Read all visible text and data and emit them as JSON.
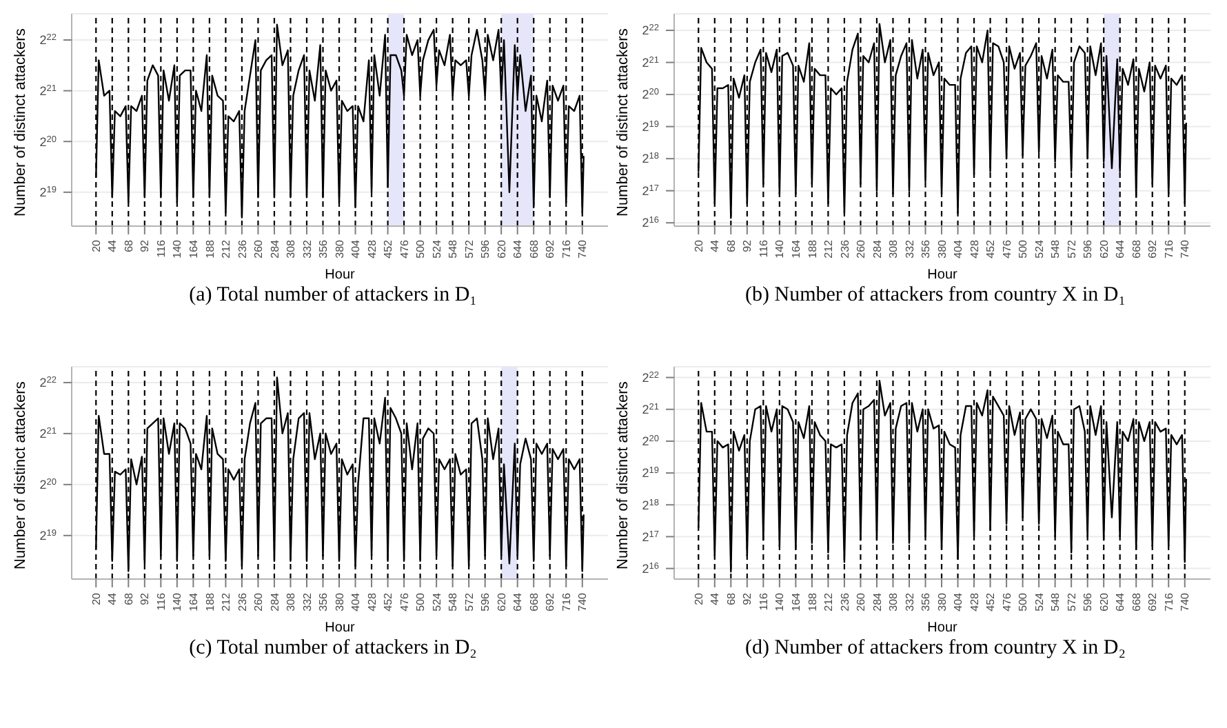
{
  "chart_data": [
    {
      "type": "line",
      "title": "(a) Total number of attackers in D₁",
      "xlabel": "Hour",
      "ylabel": "Number of distinct attackers",
      "log": true,
      "grid": "y",
      "xlim": [
        -16,
        778
      ],
      "xticks": [
        20,
        44,
        68,
        92,
        116,
        140,
        164,
        188,
        212,
        236,
        260,
        284,
        308,
        332,
        356,
        380,
        404,
        428,
        452,
        476,
        500,
        524,
        548,
        572,
        596,
        620,
        644,
        668,
        692,
        716,
        740
      ],
      "ylim": [
        330000,
        6000000
      ],
      "yticks": [
        {
          "value": 524288,
          "label": "2$^{19}$"
        },
        {
          "value": 1048576,
          "label": "2$^{20}$"
        },
        {
          "value": 2097152,
          "label": "2$^{21}$"
        },
        {
          "value": 4194304,
          "label": "2$^{22}$"
        }
      ],
      "x": [
        20,
        24,
        32,
        40,
        44,
        48,
        56,
        64,
        68,
        72,
        80,
        88,
        92,
        96,
        104,
        112,
        116,
        120,
        128,
        136,
        140,
        144,
        152,
        160,
        164,
        168,
        176,
        184,
        188,
        192,
        200,
        208,
        212,
        216,
        224,
        232,
        236,
        240,
        248,
        256,
        260,
        264,
        272,
        280,
        284,
        288,
        296,
        304,
        308,
        312,
        320,
        328,
        332,
        336,
        344,
        352,
        356,
        360,
        368,
        376,
        380,
        384,
        392,
        400,
        404,
        408,
        416,
        424,
        428,
        432,
        440,
        448,
        452,
        456,
        464,
        472,
        476,
        480,
        488,
        496,
        500,
        504,
        512,
        520,
        524,
        528,
        536,
        544,
        548,
        552,
        560,
        568,
        572,
        576,
        584,
        592,
        596,
        600,
        608,
        616,
        620,
        624,
        632,
        640,
        644,
        648,
        656,
        664,
        668,
        672,
        680,
        688,
        692,
        696,
        704,
        712,
        716,
        720,
        728,
        736,
        740,
        742
      ],
      "series": [
        {
          "color": "#000000",
          "values": [
            645000,
            3180000,
            1960000,
            2100000,
            489000,
            1590000,
            1480000,
            1700000,
            456000,
            1700000,
            1590000,
            1960000,
            489000,
            2410000,
            2970000,
            2580000,
            489000,
            2770000,
            1830000,
            2970000,
            456000,
            2580000,
            2770000,
            2770000,
            489000,
            2100000,
            1590000,
            3410000,
            489000,
            2580000,
            1960000,
            1830000,
            397000,
            1480000,
            1380000,
            1590000,
            371000,
            1590000,
            2580000,
            4190000,
            489000,
            2770000,
            3180000,
            3410000,
            489000,
            5170000,
            2970000,
            3650000,
            489000,
            1960000,
            2770000,
            3410000,
            489000,
            2770000,
            1830000,
            3910000,
            489000,
            2770000,
            2100000,
            2410000,
            456000,
            1830000,
            1590000,
            1700000,
            426000,
            1700000,
            1380000,
            3180000,
            524000,
            3410000,
            1960000,
            4500000,
            562000,
            3410000,
            3410000,
            2770000,
            1960000,
            4500000,
            3410000,
            4190000,
            1960000,
            3180000,
            4190000,
            4820000,
            2250000,
            3650000,
            2970000,
            4500000,
            1960000,
            3180000,
            2970000,
            3180000,
            1960000,
            3410000,
            4820000,
            3180000,
            1960000,
            4500000,
            3180000,
            4820000,
            1960000,
            4190000,
            524000,
            3910000,
            1960000,
            3410000,
            1590000,
            2580000,
            426000,
            1960000,
            1380000,
            2410000,
            489000,
            2250000,
            1830000,
            2250000,
            456000,
            1700000,
            1590000,
            1960000,
            397000,
            852000
          ]
        }
      ],
      "bands": [
        {
          "axis": "x",
          "from": 452,
          "to": 476,
          "color": "#e6e6fa"
        },
        {
          "axis": "x",
          "from": 620,
          "to": 668,
          "color": "#e6e6fa"
        }
      ],
      "ref_lines": [
        {
          "axis": "x",
          "value": 20,
          "line_style": "dashed",
          "color": "#000000"
        },
        {
          "axis": "x",
          "value": 44,
          "line_style": "dashed",
          "color": "#000000"
        },
        {
          "axis": "x",
          "value": 68,
          "line_style": "dashed",
          "color": "#000000"
        },
        {
          "axis": "x",
          "value": 92,
          "line_style": "dashed",
          "color": "#000000"
        },
        {
          "axis": "x",
          "value": 116,
          "line_style": "dashed",
          "color": "#000000"
        },
        {
          "axis": "x",
          "value": 140,
          "line_style": "dashed",
          "color": "#000000"
        },
        {
          "axis": "x",
          "value": 164,
          "line_style": "dashed",
          "color": "#000000"
        },
        {
          "axis": "x",
          "value": 188,
          "line_style": "dashed",
          "color": "#000000"
        },
        {
          "axis": "x",
          "value": 212,
          "line_style": "dashed",
          "color": "#000000"
        },
        {
          "axis": "x",
          "value": 236,
          "line_style": "dashed",
          "color": "#000000"
        },
        {
          "axis": "x",
          "value": 260,
          "line_style": "dashed",
          "color": "#000000"
        },
        {
          "axis": "x",
          "value": 284,
          "line_style": "dashed",
          "color": "#000000"
        },
        {
          "axis": "x",
          "value": 308,
          "line_style": "dashed",
          "color": "#000000"
        },
        {
          "axis": "x",
          "value": 332,
          "line_style": "dashed",
          "color": "#000000"
        },
        {
          "axis": "x",
          "value": 356,
          "line_style": "dashed",
          "color": "#000000"
        },
        {
          "axis": "x",
          "value": 380,
          "line_style": "dashed",
          "color": "#000000"
        },
        {
          "axis": "x",
          "value": 404,
          "line_style": "dashed",
          "color": "#000000"
        },
        {
          "axis": "x",
          "value": 428,
          "line_style": "dashed",
          "color": "#000000"
        },
        {
          "axis": "x",
          "value": 452,
          "line_style": "dashed",
          "color": "#000000"
        },
        {
          "axis": "x",
          "value": 476,
          "line_style": "dashed",
          "color": "#000000"
        },
        {
          "axis": "x",
          "value": 500,
          "line_style": "dashed",
          "color": "#000000"
        },
        {
          "axis": "x",
          "value": 524,
          "line_style": "dashed",
          "color": "#000000"
        },
        {
          "axis": "x",
          "value": 548,
          "line_style": "dashed",
          "color": "#000000"
        },
        {
          "axis": "x",
          "value": 572,
          "line_style": "dashed",
          "color": "#000000"
        },
        {
          "axis": "x",
          "value": 596,
          "line_style": "dashed",
          "color": "#000000"
        },
        {
          "axis": "x",
          "value": 620,
          "line_style": "dashed",
          "color": "#000000"
        },
        {
          "axis": "x",
          "value": 644,
          "line_style": "dashed",
          "color": "#000000"
        },
        {
          "axis": "x",
          "value": 668,
          "line_style": "dashed",
          "color": "#000000"
        },
        {
          "axis": "x",
          "value": 692,
          "line_style": "dashed",
          "color": "#000000"
        },
        {
          "axis": "x",
          "value": 716,
          "line_style": "dashed",
          "color": "#000000"
        },
        {
          "axis": "x",
          "value": 740,
          "line_style": "dashed",
          "color": "#000000"
        }
      ]
    },
    {
      "type": "line",
      "title": "(b) Number of attackers from country X in D₁",
      "xlabel": "Hour",
      "ylabel": "Number of distinct attackers",
      "log": true,
      "grid": "y",
      "xlim": [
        -16,
        778
      ],
      "xticks": [
        20,
        44,
        68,
        92,
        116,
        140,
        164,
        188,
        212,
        236,
        260,
        284,
        308,
        332,
        356,
        380,
        404,
        428,
        452,
        476,
        500,
        524,
        548,
        572,
        596,
        620,
        644,
        668,
        692,
        716,
        740
      ],
      "ylim": [
        61000,
        6000000
      ],
      "yticks": [
        {
          "value": 65536,
          "label": "2$^{16}$"
        },
        {
          "value": 131072,
          "label": "2$^{17}$"
        },
        {
          "value": 262144,
          "label": "2$^{18}$"
        },
        {
          "value": 524288,
          "label": "2$^{19}$"
        },
        {
          "value": 1048576,
          "label": "2$^{20}$"
        },
        {
          "value": 2097152,
          "label": "2$^{21}$"
        },
        {
          "value": 4194304,
          "label": "2$^{22}$"
        }
      ],
      "x": [
        20,
        24,
        32,
        40,
        44,
        48,
        56,
        64,
        68,
        72,
        80,
        88,
        92,
        96,
        104,
        112,
        116,
        120,
        128,
        136,
        140,
        144,
        152,
        160,
        164,
        168,
        176,
        184,
        188,
        192,
        200,
        208,
        212,
        216,
        224,
        232,
        236,
        240,
        248,
        256,
        260,
        264,
        272,
        280,
        284,
        288,
        296,
        304,
        308,
        312,
        320,
        328,
        332,
        336,
        344,
        352,
        356,
        360,
        368,
        376,
        380,
        384,
        392,
        400,
        404,
        408,
        416,
        424,
        428,
        432,
        440,
        448,
        452,
        456,
        464,
        472,
        476,
        480,
        488,
        496,
        500,
        504,
        512,
        520,
        524,
        528,
        536,
        544,
        548,
        552,
        560,
        568,
        572,
        576,
        584,
        592,
        596,
        600,
        608,
        616,
        620,
        624,
        632,
        640,
        644,
        648,
        656,
        664,
        668,
        672,
        680,
        688,
        692,
        696,
        704,
        712,
        716,
        720,
        728,
        736,
        740,
        742
      ],
      "series": [
        {
          "color": "#000000",
          "values": [
            199000,
            2870000,
            2100000,
            1830000,
            99400,
            1200000,
            1200000,
            1290000,
            72700,
            1480000,
            978000,
            1590000,
            99400,
            1380000,
            2100000,
            2770000,
            151000,
            2580000,
            1700000,
            2770000,
            122000,
            2410000,
            2580000,
            1960000,
            122000,
            1960000,
            1380000,
            3180000,
            151000,
            1830000,
            1590000,
            1590000,
            99400,
            1200000,
            1050000,
            1200000,
            80700,
            1380000,
            2770000,
            3910000,
            151000,
            2410000,
            2100000,
            3180000,
            131000,
            4820000,
            2100000,
            3410000,
            122000,
            1590000,
            2410000,
            3180000,
            131000,
            3410000,
            1480000,
            2770000,
            161000,
            2580000,
            1590000,
            2100000,
            122000,
            1480000,
            1290000,
            1290000,
            80700,
            1480000,
            2580000,
            2970000,
            185000,
            2970000,
            2100000,
            4190000,
            199000,
            3180000,
            2970000,
            2100000,
            262000,
            2970000,
            1830000,
            2580000,
            281000,
            1960000,
            2410000,
            3180000,
            301000,
            2410000,
            1480000,
            2770000,
            245000,
            1590000,
            1380000,
            1380000,
            199000,
            2100000,
            2970000,
            2580000,
            262000,
            2970000,
            1590000,
            3180000,
            245000,
            2410000,
            213000,
            2250000,
            199000,
            1830000,
            1290000,
            2250000,
            114000,
            1830000,
            1120000,
            2100000,
            151000,
            1960000,
            1480000,
            1960000,
            122000,
            1480000,
            1290000,
            1590000,
            99400,
            562000
          ]
        }
      ],
      "bands": [
        {
          "axis": "x",
          "from": 620,
          "to": 644,
          "color": "#e6e6fa"
        }
      ],
      "ref_lines": [
        {
          "axis": "x",
          "value": 20,
          "line_style": "dashed",
          "color": "#000000"
        },
        {
          "axis": "x",
          "value": 44,
          "line_style": "dashed",
          "color": "#000000"
        },
        {
          "axis": "x",
          "value": 68,
          "line_style": "dashed",
          "color": "#000000"
        },
        {
          "axis": "x",
          "value": 92,
          "line_style": "dashed",
          "color": "#000000"
        },
        {
          "axis": "x",
          "value": 116,
          "line_style": "dashed",
          "color": "#000000"
        },
        {
          "axis": "x",
          "value": 140,
          "line_style": "dashed",
          "color": "#000000"
        },
        {
          "axis": "x",
          "value": 164,
          "line_style": "dashed",
          "color": "#000000"
        },
        {
          "axis": "x",
          "value": 188,
          "line_style": "dashed",
          "color": "#000000"
        },
        {
          "axis": "x",
          "value": 212,
          "line_style": "dashed",
          "color": "#000000"
        },
        {
          "axis": "x",
          "value": 236,
          "line_style": "dashed",
          "color": "#000000"
        },
        {
          "axis": "x",
          "value": 260,
          "line_style": "dashed",
          "color": "#000000"
        },
        {
          "axis": "x",
          "value": 284,
          "line_style": "dashed",
          "color": "#000000"
        },
        {
          "axis": "x",
          "value": 308,
          "line_style": "dashed",
          "color": "#000000"
        },
        {
          "axis": "x",
          "value": 332,
          "line_style": "dashed",
          "color": "#000000"
        },
        {
          "axis": "x",
          "value": 356,
          "line_style": "dashed",
          "color": "#000000"
        },
        {
          "axis": "x",
          "value": 380,
          "line_style": "dashed",
          "color": "#000000"
        },
        {
          "axis": "x",
          "value": 404,
          "line_style": "dashed",
          "color": "#000000"
        },
        {
          "axis": "x",
          "value": 428,
          "line_style": "dashed",
          "color": "#000000"
        },
        {
          "axis": "x",
          "value": 452,
          "line_style": "dashed",
          "color": "#000000"
        },
        {
          "axis": "x",
          "value": 476,
          "line_style": "dashed",
          "color": "#000000"
        },
        {
          "axis": "x",
          "value": 500,
          "line_style": "dashed",
          "color": "#000000"
        },
        {
          "axis": "x",
          "value": 524,
          "line_style": "dashed",
          "color": "#000000"
        },
        {
          "axis": "x",
          "value": 548,
          "line_style": "dashed",
          "color": "#000000"
        },
        {
          "axis": "x",
          "value": 572,
          "line_style": "dashed",
          "color": "#000000"
        },
        {
          "axis": "x",
          "value": 596,
          "line_style": "dashed",
          "color": "#000000"
        },
        {
          "axis": "x",
          "value": 620,
          "line_style": "dashed",
          "color": "#000000"
        },
        {
          "axis": "x",
          "value": 644,
          "line_style": "dashed",
          "color": "#000000"
        },
        {
          "axis": "x",
          "value": 668,
          "line_style": "dashed",
          "color": "#000000"
        },
        {
          "axis": "x",
          "value": 692,
          "line_style": "dashed",
          "color": "#000000"
        },
        {
          "axis": "x",
          "value": 716,
          "line_style": "dashed",
          "color": "#000000"
        },
        {
          "axis": "x",
          "value": 740,
          "line_style": "dashed",
          "color": "#000000"
        }
      ]
    },
    {
      "type": "line",
      "title": "(c) Total number of attackers in D₂",
      "xlabel": "Hour",
      "ylabel": "Number of distinct attackers",
      "log": true,
      "grid": "y",
      "xlim": [
        -16,
        778
      ],
      "xticks": [
        20,
        44,
        68,
        92,
        116,
        140,
        164,
        188,
        212,
        236,
        260,
        284,
        308,
        332,
        356,
        380,
        404,
        428,
        452,
        476,
        500,
        524,
        548,
        572,
        596,
        620,
        644,
        668,
        692,
        716,
        740
      ],
      "ylim": [
        290000,
        5200000
      ],
      "yticks": [
        {
          "value": 524288,
          "label": "2$^{19}$"
        },
        {
          "value": 1048576,
          "label": "2$^{20}$"
        },
        {
          "value": 2097152,
          "label": "2$^{21}$"
        },
        {
          "value": 4194304,
          "label": "2$^{22}$"
        }
      ],
      "x": [
        20,
        24,
        32,
        40,
        44,
        48,
        56,
        64,
        68,
        72,
        80,
        88,
        92,
        96,
        104,
        112,
        116,
        120,
        128,
        136,
        140,
        144,
        152,
        160,
        164,
        168,
        176,
        184,
        188,
        192,
        200,
        208,
        212,
        216,
        224,
        232,
        236,
        240,
        248,
        256,
        260,
        264,
        272,
        280,
        284,
        288,
        296,
        304,
        308,
        312,
        320,
        328,
        332,
        336,
        344,
        352,
        356,
        360,
        368,
        376,
        380,
        384,
        392,
        400,
        404,
        408,
        416,
        424,
        428,
        432,
        440,
        448,
        452,
        456,
        464,
        472,
        476,
        480,
        488,
        496,
        500,
        504,
        512,
        520,
        524,
        528,
        536,
        544,
        548,
        552,
        560,
        568,
        572,
        576,
        584,
        592,
        596,
        600,
        608,
        616,
        620,
        624,
        632,
        640,
        644,
        648,
        656,
        664,
        668,
        672,
        680,
        688,
        692,
        696,
        704,
        712,
        716,
        720,
        728,
        736,
        740,
        742
      ],
      "series": [
        {
          "color": "#000000",
          "values": [
            441000,
            2670000,
            1590000,
            1590000,
            371000,
            1250000,
            1200000,
            1290000,
            323000,
            1480000,
            1050000,
            1530000,
            358000,
            2250000,
            2410000,
            2580000,
            397000,
            2580000,
            1590000,
            2410000,
            371000,
            2410000,
            2250000,
            1830000,
            397000,
            1590000,
            1290000,
            2670000,
            397000,
            2250000,
            1590000,
            1480000,
            371000,
            1290000,
            1120000,
            1290000,
            346000,
            1480000,
            2410000,
            3180000,
            397000,
            2410000,
            2580000,
            2580000,
            371000,
            4500000,
            2100000,
            2770000,
            371000,
            1480000,
            2580000,
            2770000,
            371000,
            2770000,
            1480000,
            2100000,
            397000,
            2100000,
            1590000,
            1830000,
            371000,
            1480000,
            1200000,
            1380000,
            346000,
            1050000,
            2580000,
            2580000,
            397000,
            2580000,
            1830000,
            3410000,
            371000,
            2970000,
            2580000,
            2100000,
            371000,
            2410000,
            1290000,
            2410000,
            371000,
            1960000,
            2250000,
            2100000,
            397000,
            1480000,
            1290000,
            1480000,
            346000,
            1590000,
            1200000,
            1290000,
            346000,
            2410000,
            2580000,
            1480000,
            397000,
            2580000,
            1480000,
            2250000,
            397000,
            1380000,
            358000,
            1830000,
            397000,
            1380000,
            1960000,
            1480000,
            371000,
            1830000,
            1590000,
            1830000,
            397000,
            1700000,
            1480000,
            1700000,
            346000,
            1480000,
            1290000,
            1480000,
            323000,
            692000
          ]
        }
      ],
      "bands": [
        {
          "axis": "x",
          "from": 620,
          "to": 644,
          "color": "#e6e6fa"
        }
      ],
      "ref_lines": [
        {
          "axis": "x",
          "value": 20,
          "line_style": "dashed",
          "color": "#000000"
        },
        {
          "axis": "x",
          "value": 44,
          "line_style": "dashed",
          "color": "#000000"
        },
        {
          "axis": "x",
          "value": 68,
          "line_style": "dashed",
          "color": "#000000"
        },
        {
          "axis": "x",
          "value": 92,
          "line_style": "dashed",
          "color": "#000000"
        },
        {
          "axis": "x",
          "value": 116,
          "line_style": "dashed",
          "color": "#000000"
        },
        {
          "axis": "x",
          "value": 140,
          "line_style": "dashed",
          "color": "#000000"
        },
        {
          "axis": "x",
          "value": 164,
          "line_style": "dashed",
          "color": "#000000"
        },
        {
          "axis": "x",
          "value": 188,
          "line_style": "dashed",
          "color": "#000000"
        },
        {
          "axis": "x",
          "value": 212,
          "line_style": "dashed",
          "color": "#000000"
        },
        {
          "axis": "x",
          "value": 236,
          "line_style": "dashed",
          "color": "#000000"
        },
        {
          "axis": "x",
          "value": 260,
          "line_style": "dashed",
          "color": "#000000"
        },
        {
          "axis": "x",
          "value": 284,
          "line_style": "dashed",
          "color": "#000000"
        },
        {
          "axis": "x",
          "value": 308,
          "line_style": "dashed",
          "color": "#000000"
        },
        {
          "axis": "x",
          "value": 332,
          "line_style": "dashed",
          "color": "#000000"
        },
        {
          "axis": "x",
          "value": 356,
          "line_style": "dashed",
          "color": "#000000"
        },
        {
          "axis": "x",
          "value": 380,
          "line_style": "dashed",
          "color": "#000000"
        },
        {
          "axis": "x",
          "value": 404,
          "line_style": "dashed",
          "color": "#000000"
        },
        {
          "axis": "x",
          "value": 428,
          "line_style": "dashed",
          "color": "#000000"
        },
        {
          "axis": "x",
          "value": 452,
          "line_style": "dashed",
          "color": "#000000"
        },
        {
          "axis": "x",
          "value": 476,
          "line_style": "dashed",
          "color": "#000000"
        },
        {
          "axis": "x",
          "value": 500,
          "line_style": "dashed",
          "color": "#000000"
        },
        {
          "axis": "x",
          "value": 524,
          "line_style": "dashed",
          "color": "#000000"
        },
        {
          "axis": "x",
          "value": 548,
          "line_style": "dashed",
          "color": "#000000"
        },
        {
          "axis": "x",
          "value": 572,
          "line_style": "dashed",
          "color": "#000000"
        },
        {
          "axis": "x",
          "value": 596,
          "line_style": "dashed",
          "color": "#000000"
        },
        {
          "axis": "x",
          "value": 620,
          "line_style": "dashed",
          "color": "#000000"
        },
        {
          "axis": "x",
          "value": 644,
          "line_style": "dashed",
          "color": "#000000"
        },
        {
          "axis": "x",
          "value": 668,
          "line_style": "dashed",
          "color": "#000000"
        },
        {
          "axis": "x",
          "value": 692,
          "line_style": "dashed",
          "color": "#000000"
        },
        {
          "axis": "x",
          "value": 716,
          "line_style": "dashed",
          "color": "#000000"
        },
        {
          "axis": "x",
          "value": 740,
          "line_style": "dashed",
          "color": "#000000"
        }
      ]
    },
    {
      "type": "line",
      "title": "(d) Number of attackers from country X in D₂",
      "xlabel": "Hour",
      "ylabel": "Number of distinct attackers",
      "log": true,
      "grid": "y",
      "xlim": [
        -16,
        778
      ],
      "xticks": [
        20,
        44,
        68,
        92,
        116,
        140,
        164,
        188,
        212,
        236,
        260,
        284,
        308,
        332,
        356,
        380,
        404,
        428,
        452,
        476,
        500,
        524,
        548,
        572,
        596,
        620,
        644,
        668,
        692,
        716,
        740
      ],
      "ylim": [
        52000,
        5300000
      ],
      "yticks": [
        {
          "value": 65536,
          "label": "2$^{16}$"
        },
        {
          "value": 131072,
          "label": "2$^{17}$"
        },
        {
          "value": 262144,
          "label": "2$^{18}$"
        },
        {
          "value": 524288,
          "label": "2$^{19}$"
        },
        {
          "value": 1048576,
          "label": "2$^{20}$"
        },
        {
          "value": 2097152,
          "label": "2$^{21}$"
        },
        {
          "value": 4194304,
          "label": "2$^{22}$"
        }
      ],
      "x": [
        20,
        24,
        32,
        40,
        44,
        48,
        56,
        64,
        68,
        72,
        80,
        88,
        92,
        96,
        104,
        112,
        116,
        120,
        128,
        136,
        140,
        144,
        152,
        160,
        164,
        168,
        176,
        184,
        188,
        192,
        200,
        208,
        212,
        216,
        224,
        232,
        236,
        240,
        248,
        256,
        260,
        264,
        272,
        280,
        284,
        288,
        296,
        304,
        308,
        312,
        320,
        328,
        332,
        336,
        344,
        352,
        356,
        360,
        368,
        376,
        380,
        384,
        392,
        400,
        404,
        408,
        416,
        424,
        428,
        432,
        440,
        448,
        452,
        456,
        464,
        472,
        476,
        480,
        488,
        496,
        500,
        504,
        512,
        520,
        524,
        528,
        536,
        544,
        548,
        552,
        560,
        568,
        572,
        576,
        584,
        592,
        596,
        600,
        608,
        616,
        620,
        624,
        632,
        640,
        644,
        648,
        656,
        664,
        668,
        672,
        680,
        688,
        692,
        696,
        704,
        712,
        716,
        720,
        728,
        736,
        740,
        742
      ],
      "series": [
        {
          "color": "#000000",
          "values": [
            161000,
            2410000,
            1290000,
            1290000,
            86500,
            1050000,
            913000,
            978000,
            61100,
            1290000,
            852000,
            1200000,
            86500,
            1050000,
            2100000,
            2250000,
            122000,
            2250000,
            1290000,
            2100000,
            106000,
            2250000,
            2100000,
            1590000,
            99400,
            1590000,
            1120000,
            2250000,
            114000,
            1590000,
            1200000,
            1050000,
            92700,
            978000,
            913000,
            978000,
            75300,
            1200000,
            2410000,
            2970000,
            122000,
            2100000,
            2250000,
            2580000,
            122000,
            3910000,
            1830000,
            2410000,
            114000,
            1380000,
            2250000,
            2410000,
            114000,
            2410000,
            1290000,
            2100000,
            131000,
            2100000,
            1380000,
            1480000,
            99400,
            1290000,
            978000,
            913000,
            80700,
            1200000,
            2250000,
            2250000,
            131000,
            2410000,
            1830000,
            3180000,
            151000,
            2770000,
            2250000,
            1830000,
            173000,
            2250000,
            1200000,
            1960000,
            199000,
            1700000,
            2100000,
            1700000,
            173000,
            1700000,
            1120000,
            1830000,
            131000,
            1290000,
            978000,
            978000,
            92700,
            2100000,
            2250000,
            1290000,
            131000,
            2250000,
            1200000,
            2250000,
            122000,
            1590000,
            199000,
            1590000,
            131000,
            1290000,
            1050000,
            1700000,
            99400,
            1590000,
            1050000,
            1590000,
            106000,
            1590000,
            1290000,
            1380000,
            106000,
            1200000,
            978000,
            1200000,
            75300,
            456000
          ]
        }
      ],
      "ref_lines": [
        {
          "axis": "x",
          "value": 20,
          "line_style": "dashed",
          "color": "#000000"
        },
        {
          "axis": "x",
          "value": 44,
          "line_style": "dashed",
          "color": "#000000"
        },
        {
          "axis": "x",
          "value": 68,
          "line_style": "dashed",
          "color": "#000000"
        },
        {
          "axis": "x",
          "value": 92,
          "line_style": "dashed",
          "color": "#000000"
        },
        {
          "axis": "x",
          "value": 116,
          "line_style": "dashed",
          "color": "#000000"
        },
        {
          "axis": "x",
          "value": 140,
          "line_style": "dashed",
          "color": "#000000"
        },
        {
          "axis": "x",
          "value": 164,
          "line_style": "dashed",
          "color": "#000000"
        },
        {
          "axis": "x",
          "value": 188,
          "line_style": "dashed",
          "color": "#000000"
        },
        {
          "axis": "x",
          "value": 212,
          "line_style": "dashed",
          "color": "#000000"
        },
        {
          "axis": "x",
          "value": 236,
          "line_style": "dashed",
          "color": "#000000"
        },
        {
          "axis": "x",
          "value": 260,
          "line_style": "dashed",
          "color": "#000000"
        },
        {
          "axis": "x",
          "value": 284,
          "line_style": "dashed",
          "color": "#000000"
        },
        {
          "axis": "x",
          "value": 308,
          "line_style": "dashed",
          "color": "#000000"
        },
        {
          "axis": "x",
          "value": 332,
          "line_style": "dashed",
          "color": "#000000"
        },
        {
          "axis": "x",
          "value": 356,
          "line_style": "dashed",
          "color": "#000000"
        },
        {
          "axis": "x",
          "value": 380,
          "line_style": "dashed",
          "color": "#000000"
        },
        {
          "axis": "x",
          "value": 404,
          "line_style": "dashed",
          "color": "#000000"
        },
        {
          "axis": "x",
          "value": 428,
          "line_style": "dashed",
          "color": "#000000"
        },
        {
          "axis": "x",
          "value": 452,
          "line_style": "dashed",
          "color": "#000000"
        },
        {
          "axis": "x",
          "value": 476,
          "line_style": "dashed",
          "color": "#000000"
        },
        {
          "axis": "x",
          "value": 500,
          "line_style": "dashed",
          "color": "#000000"
        },
        {
          "axis": "x",
          "value": 524,
          "line_style": "dashed",
          "color": "#000000"
        },
        {
          "axis": "x",
          "value": 548,
          "line_style": "dashed",
          "color": "#000000"
        },
        {
          "axis": "x",
          "value": 572,
          "line_style": "dashed",
          "color": "#000000"
        },
        {
          "axis": "x",
          "value": 596,
          "line_style": "dashed",
          "color": "#000000"
        },
        {
          "axis": "x",
          "value": 620,
          "line_style": "dashed",
          "color": "#000000"
        },
        {
          "axis": "x",
          "value": 644,
          "line_style": "dashed",
          "color": "#000000"
        },
        {
          "axis": "x",
          "value": 668,
          "line_style": "dashed",
          "color": "#000000"
        },
        {
          "axis": "x",
          "value": 692,
          "line_style": "dashed",
          "color": "#000000"
        },
        {
          "axis": "x",
          "value": 716,
          "line_style": "dashed",
          "color": "#000000"
        },
        {
          "axis": "x",
          "value": 740,
          "line_style": "dashed",
          "color": "#000000"
        }
      ]
    }
  ]
}
